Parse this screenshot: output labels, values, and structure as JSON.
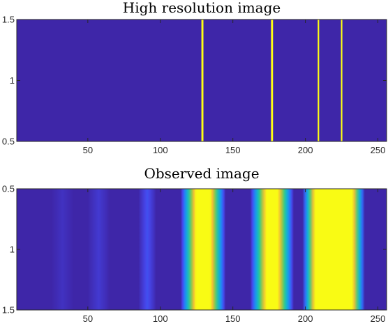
{
  "chart_data": [
    {
      "type": "heatmap",
      "title": "High resolution image",
      "xlabel": "",
      "ylabel": "",
      "xlim": [
        1,
        256
      ],
      "ylim": [
        0.5,
        1.5
      ],
      "x_ticks": [
        50,
        100,
        150,
        200,
        250
      ],
      "y_ticks": [
        1.5,
        1,
        0.5
      ],
      "y_tick_labels": [
        "1.5",
        "1",
        "0.5"
      ],
      "y_direction": "normal",
      "colormap": "parula",
      "background_color": "#3E26A8",
      "spike_color": "#FFFF14",
      "spikes": [
        {
          "x": 129,
          "value": 1.0
        },
        {
          "x": 177,
          "value": 1.0
        },
        {
          "x": 209,
          "value": 0.9
        },
        {
          "x": 225,
          "value": 0.9
        }
      ]
    },
    {
      "type": "heatmap",
      "title": "Observed image",
      "xlabel": "",
      "ylabel": "",
      "xlim": [
        1,
        256
      ],
      "ylim": [
        0.5,
        1.5
      ],
      "x_ticks": [
        50,
        100,
        150,
        200,
        250
      ],
      "y_ticks": [
        0.5,
        1,
        1.5
      ],
      "y_tick_labels": [
        "0.5",
        "1",
        "1.5"
      ],
      "y_direction": "reverse",
      "colormap": "parula",
      "background_color": "#3E26A8",
      "bands": [
        {
          "x0": 25,
          "x1": 40,
          "peak": 0.04
        },
        {
          "x0": 50,
          "x1": 65,
          "peak": 0.07
        },
        {
          "x0": 85,
          "x1": 97,
          "peak": 0.15
        },
        {
          "x0": 114,
          "x1": 145,
          "peak": 1.0,
          "core": 10
        },
        {
          "x0": 162,
          "x1": 192,
          "peak": 1.0,
          "core": 8
        },
        {
          "x0": 198,
          "x1": 241,
          "peak": 1.0,
          "core": 26
        }
      ]
    }
  ]
}
